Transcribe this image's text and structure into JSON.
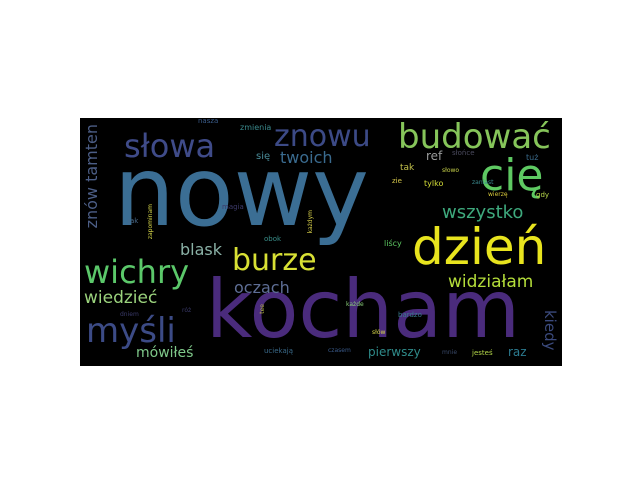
{
  "words": {
    "nowy": {
      "text": "nowy",
      "color": "#3b6e94"
    },
    "kocham": {
      "text": "kocham",
      "color": "#4a2b7c"
    },
    "dzien": {
      "text": "dzień",
      "color": "#e8e41e"
    },
    "budowac": {
      "text": "budować",
      "color": "#86c55a"
    },
    "cie": {
      "text": "cię",
      "color": "#5ec962"
    },
    "znowu": {
      "text": "znowu",
      "color": "#3c4a86"
    },
    "slowa": {
      "text": "słowa",
      "color": "#3f4b89"
    },
    "wichry": {
      "text": "wichry",
      "color": "#5bc86a"
    },
    "burze": {
      "text": "burze",
      "color": "#d8e034"
    },
    "mysli": {
      "text": "myśli",
      "color": "#3c4b86"
    },
    "wszystko": {
      "text": "wszystko",
      "color": "#3ea97d"
    },
    "widzialam": {
      "text": "widziałam",
      "color": "#b4dd3a"
    },
    "twoich": {
      "text": "twoich",
      "color": "#3a6b8f"
    },
    "oczach": {
      "text": "oczach",
      "color": "#5e6e95"
    },
    "blask": {
      "text": "blask",
      "color": "#8ab1a6"
    },
    "wiedziec": {
      "text": "wiedzieć",
      "color": "#9bd37d"
    },
    "mowiles": {
      "text": "mówiłeś",
      "color": "#7fc98a"
    },
    "znow_tamten": {
      "text": "znów tamten",
      "color": "#4c5e86"
    },
    "kiedy": {
      "text": "kiedy",
      "color": "#3b4a7d"
    },
    "pierwszy": {
      "text": "pierwszy",
      "color": "#2f8b8a"
    },
    "raz": {
      "text": "raz",
      "color": "#2c7b90"
    },
    "sie": {
      "text": "się",
      "color": "#4a8d9a"
    },
    "ref": {
      "text": "ref",
      "color": "#9a9c9c"
    },
    "tak": {
      "text": "tak",
      "color": "#c2c04b"
    },
    "zmienia": {
      "text": "zmienia",
      "color": "#3a8a8c"
    },
    "nasza": {
      "text": "nasza",
      "color": "#3a5c8a"
    },
    "slonce": {
      "text": "słońce",
      "color": "#4a4a5e"
    },
    "tuz": {
      "text": "tuż",
      "color": "#3a6a8a"
    },
    "slowo": {
      "text": "słowo",
      "color": "#c9d34a"
    },
    "tylko": {
      "text": "tylko",
      "color": "#d5de38"
    },
    "zaniast": {
      "text": "zaniast",
      "color": "#3a8a8e"
    },
    "gdy": {
      "text": "gdy",
      "color": "#b7d84a"
    },
    "zie": {
      "text": "zie",
      "color": "#d6c74a"
    },
    "wierze": {
      "text": "wierzę",
      "color": "#d7c83a"
    },
    "kazdym": {
      "text": "każdym",
      "color": "#d8d04a"
    },
    "magia": {
      "text": "magia",
      "color": "#3d3a6a"
    },
    "jak": {
      "text": "jak",
      "color": "#4a6a8a"
    },
    "zapominam": {
      "text": "zapominam",
      "color": "#d8d84a"
    },
    "obok": {
      "text": "obok",
      "color": "#3a8f8a"
    },
    "liscy": {
      "text": "liścy",
      "color": "#5ec962"
    },
    "kazde": {
      "text": "każde",
      "color": "#8acd7a"
    },
    "bardzo": {
      "text": "bardzo",
      "color": "#3a7a8e"
    },
    "dniem": {
      "text": "dniem",
      "color": "#3a3a6a"
    },
    "roz": {
      "text": "róż",
      "color": "#3a3a6a"
    },
    "tee": {
      "text": "tee",
      "color": "#b5b34a"
    },
    "slow": {
      "text": "słów",
      "color": "#d9d84a"
    },
    "uciekaja": {
      "text": "uciekają",
      "color": "#3a6a8a"
    },
    "czasem": {
      "text": "czasem",
      "color": "#3a5a8a"
    },
    "mnie": {
      "text": "mnie",
      "color": "#3a4a6a"
    },
    "jestes": {
      "text": "jesteś",
      "color": "#b5d84a"
    }
  }
}
